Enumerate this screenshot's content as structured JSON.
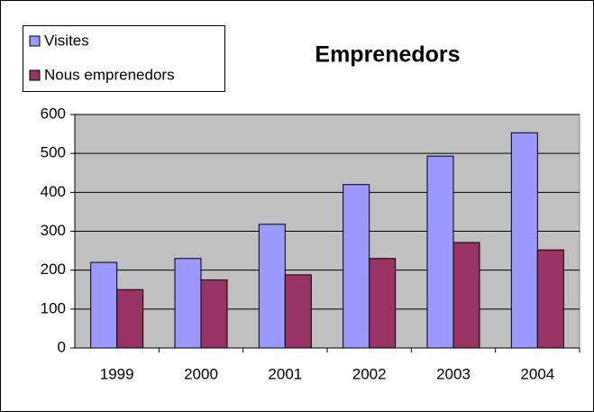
{
  "chart_data": {
    "type": "bar",
    "title": "Emprenedors",
    "categories": [
      "1999",
      "2000",
      "2001",
      "2002",
      "2003",
      "2004"
    ],
    "series": [
      {
        "name": "Visites",
        "color": "#9999ff",
        "values": [
          220,
          230,
          318,
          420,
          493,
          553
        ]
      },
      {
        "name": "Nous emprenedors",
        "color": "#993366",
        "values": [
          150,
          175,
          188,
          230,
          271,
          252
        ]
      }
    ],
    "ylim": [
      0,
      600
    ],
    "yticks": [
      0,
      100,
      200,
      300,
      400,
      500,
      600
    ],
    "grid": true,
    "legend": "top-left"
  }
}
